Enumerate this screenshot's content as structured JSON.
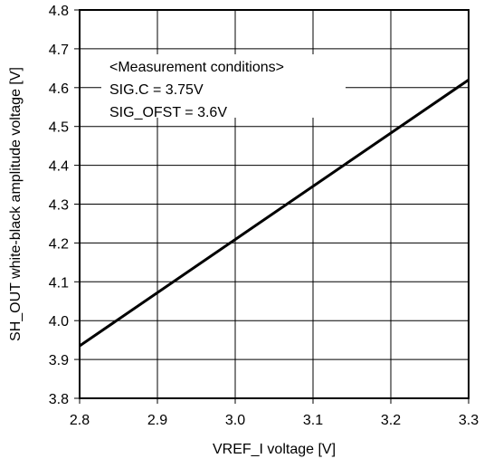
{
  "chart_data": {
    "type": "line",
    "xlabel": "VREF_I voltage [V]",
    "ylabel": "SH_OUT white-black amplitude voltage [V]",
    "xlim": [
      2.8,
      3.3
    ],
    "ylim": [
      3.8,
      4.8
    ],
    "x_ticks": [
      "2.8",
      "2.9",
      "3.0",
      "3.1",
      "3.2",
      "3.3"
    ],
    "y_ticks": [
      "3.8",
      "3.9",
      "4.0",
      "4.1",
      "4.2",
      "4.3",
      "4.4",
      "4.5",
      "4.6",
      "4.7",
      "4.8"
    ],
    "grid": true,
    "series": [
      {
        "x": [
          2.8,
          3.3
        ],
        "y": [
          3.935,
          4.62
        ],
        "color": "#000000"
      }
    ],
    "annotations": [
      "<Measurement conditions>",
      "SIG.C = 3.75V",
      "SIG_OFST = 3.6V"
    ]
  }
}
